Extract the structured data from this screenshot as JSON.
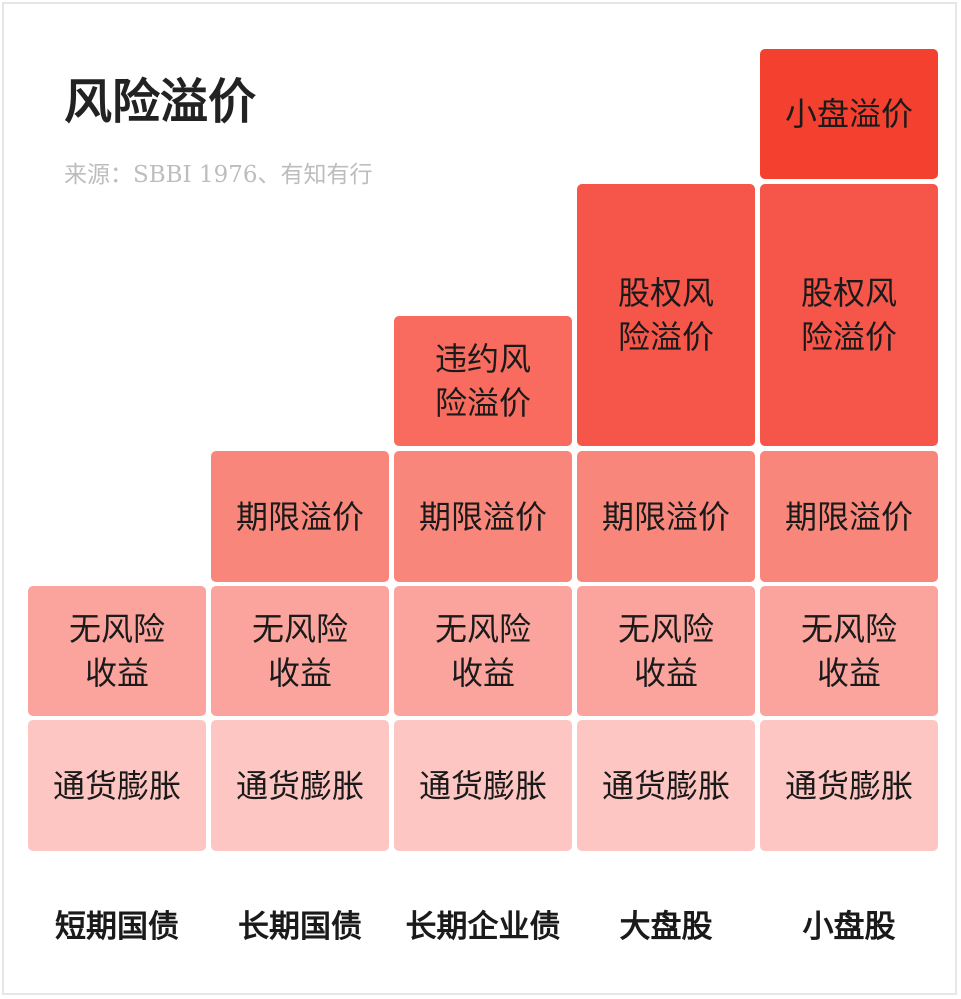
{
  "title": "风险溢价",
  "source": "来源：SBBI 1976、有知有行",
  "colors": {
    "inflation": "#fdc6c3",
    "risk_free": "#fba49e",
    "term_premium": "#f9867a",
    "default_premium": "#f86b5e",
    "equity_premium": "#f6564a",
    "small_cap_premium": "#f3402f"
  },
  "columns": [
    {
      "label": "短期国债"
    },
    {
      "label": "长期国债"
    },
    {
      "label": "长期企业债"
    },
    {
      "label": "大盘股"
    },
    {
      "label": "小盘股"
    }
  ],
  "layers": {
    "inflation": [
      "通货膨胀"
    ],
    "risk_free": [
      "无风险",
      "收益"
    ],
    "term_premium": [
      "期限溢价"
    ],
    "default_premium": [
      "违约风",
      "险溢价"
    ],
    "equity_premium": [
      "股权风",
      "险溢价"
    ],
    "small_cap_premium": [
      "小盘溢价"
    ]
  }
}
